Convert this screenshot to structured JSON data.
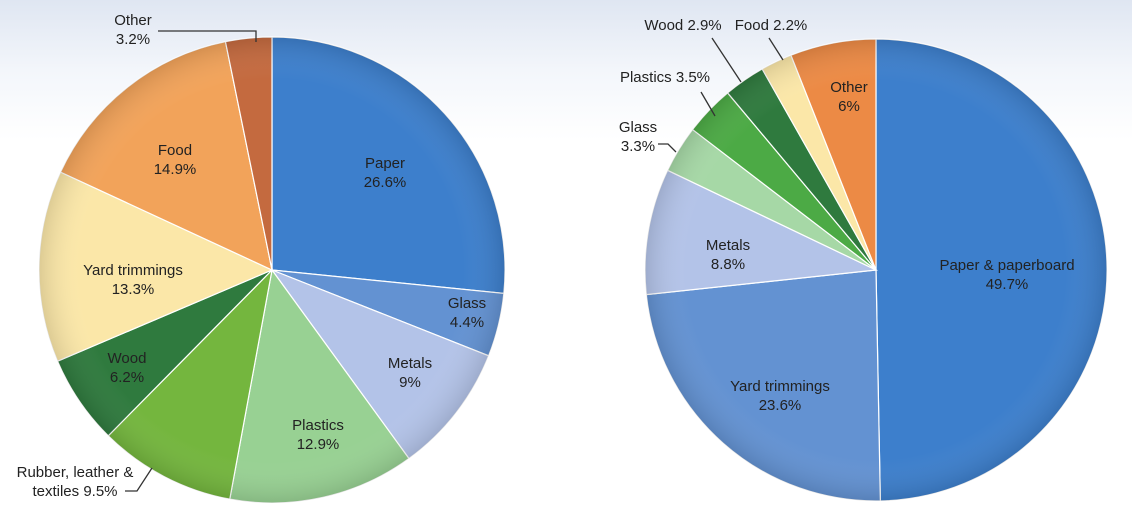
{
  "chart_data": [
    {
      "type": "pie",
      "slices": [
        {
          "label_lines": [
            "Paper",
            "26.6%"
          ],
          "value": 26.6,
          "color": "#3d7fcc"
        },
        {
          "label_lines": [
            "Glass",
            "4.4%"
          ],
          "value": 4.4,
          "color": "#6392d2"
        },
        {
          "label_lines": [
            "Metals",
            "9%"
          ],
          "value": 9.0,
          "color": "#b3c3e8"
        },
        {
          "label_lines": [
            "Plastics",
            "12.9%"
          ],
          "value": 12.9,
          "color": "#98d193"
        },
        {
          "label_lines": [
            "Rubber, leather &",
            "textiles 9.5%"
          ],
          "value": 9.5,
          "color": "#74b63e"
        },
        {
          "label_lines": [
            "Wood",
            "6.2%"
          ],
          "value": 6.2,
          "color": "#2f7a3e"
        },
        {
          "label_lines": [
            "Yard trimmings",
            "13.3%"
          ],
          "value": 13.3,
          "color": "#fbe7a8"
        },
        {
          "label_lines": [
            "Food",
            "14.9%"
          ],
          "value": 14.9,
          "color": "#f2a35a"
        },
        {
          "label_lines": [
            "Other",
            "3.2%"
          ],
          "value": 3.2,
          "color": "#c46a3f"
        }
      ]
    },
    {
      "type": "pie",
      "slices": [
        {
          "label_lines": [
            "Paper & paperboard",
            "49.7%"
          ],
          "value": 49.7,
          "color": "#3d7fcc"
        },
        {
          "label_lines": [
            "Yard trimmings",
            "23.6%"
          ],
          "value": 23.6,
          "color": "#6392d2"
        },
        {
          "label_lines": [
            "Metals",
            "8.8%"
          ],
          "value": 8.8,
          "color": "#b3c3e8"
        },
        {
          "label_lines": [
            "Glass",
            "3.3%"
          ],
          "value": 3.3,
          "color": "#a6d8a6"
        },
        {
          "label_lines": [
            "Plastics 3.5%"
          ],
          "value": 3.5,
          "color": "#4caa45"
        },
        {
          "label_lines": [
            "Wood 2.9%"
          ],
          "value": 2.9,
          "color": "#2f7a3e"
        },
        {
          "label_lines": [
            "Food 2.2%"
          ],
          "value": 2.2,
          "color": "#fbe7a8"
        },
        {
          "label_lines": [
            "Other",
            "6%"
          ],
          "value": 6.0,
          "color": "#ec8a45"
        }
      ]
    }
  ]
}
